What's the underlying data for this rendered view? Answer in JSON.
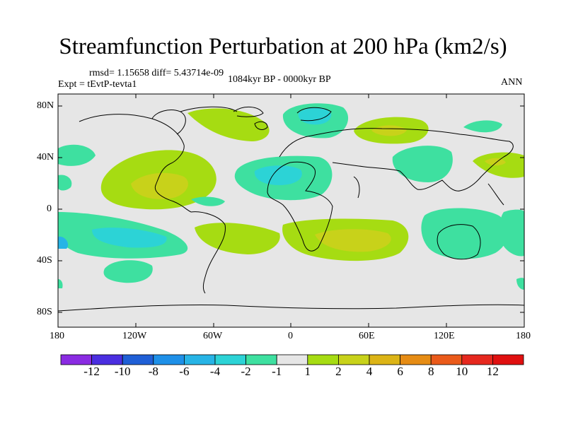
{
  "title": "Streamfunction Perturbation at 200 hPa (km2/s)",
  "stats": "rmsd= 1.15658 diff= 5.43714e-09",
  "experiment": "Expt = tEvtP-tevta1",
  "period": "1084kyr BP - 0000kyr BP",
  "season": "ANN",
  "y_ticks": [
    "80N",
    "40N",
    "0",
    "40S",
    "80S"
  ],
  "x_ticks": [
    "180",
    "120W",
    "60W",
    "0",
    "60E",
    "120E",
    "180"
  ],
  "colorbar": {
    "labels": [
      "-12",
      "-10",
      "-8",
      "-6",
      "-4",
      "-2",
      "-1",
      "1",
      "2",
      "4",
      "6",
      "8",
      "10",
      "12"
    ],
    "colors": [
      "#8a2be2",
      "#4a2ee0",
      "#1f5fd6",
      "#1e90e8",
      "#27b4e6",
      "#2cd3d6",
      "#3ee0a0",
      "#e6e6e6",
      "#a6dc12",
      "#c8d21a",
      "#dcb416",
      "#e68c14",
      "#ea5a1a",
      "#e6281e",
      "#e01010"
    ]
  }
}
